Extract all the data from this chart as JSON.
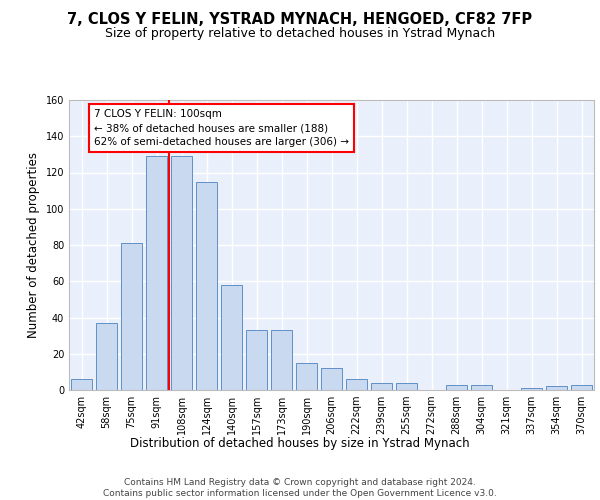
{
  "title1": "7, CLOS Y FELIN, YSTRAD MYNACH, HENGOED, CF82 7FP",
  "title2": "Size of property relative to detached houses in Ystrad Mynach",
  "xlabel": "Distribution of detached houses by size in Ystrad Mynach",
  "ylabel": "Number of detached properties",
  "categories": [
    "42sqm",
    "58sqm",
    "75sqm",
    "91sqm",
    "108sqm",
    "124sqm",
    "140sqm",
    "157sqm",
    "173sqm",
    "190sqm",
    "206sqm",
    "222sqm",
    "239sqm",
    "255sqm",
    "272sqm",
    "288sqm",
    "304sqm",
    "321sqm",
    "337sqm",
    "354sqm",
    "370sqm"
  ],
  "values": [
    6,
    37,
    81,
    129,
    129,
    115,
    58,
    33,
    33,
    15,
    12,
    6,
    4,
    4,
    0,
    3,
    3,
    0,
    1,
    2,
    3
  ],
  "bar_color": "#c9d9f0",
  "bar_edge_color": "#6090c8",
  "red_line_x": 3.5,
  "annotation_text": "7 CLOS Y FELIN: 100sqm\n← 38% of detached houses are smaller (188)\n62% of semi-detached houses are larger (306) →",
  "annotation_box_color": "white",
  "annotation_box_edge": "red",
  "ylim": [
    0,
    160
  ],
  "yticks": [
    0,
    20,
    40,
    60,
    80,
    100,
    120,
    140,
    160
  ],
  "footer": "Contains HM Land Registry data © Crown copyright and database right 2024.\nContains public sector information licensed under the Open Government Licence v3.0.",
  "background_color": "#eaf0fb",
  "grid_color": "white",
  "title1_fontsize": 10.5,
  "title2_fontsize": 9,
  "xlabel_fontsize": 8.5,
  "ylabel_fontsize": 8.5,
  "tick_fontsize": 7,
  "footer_fontsize": 6.5,
  "annot_fontsize": 7.5
}
